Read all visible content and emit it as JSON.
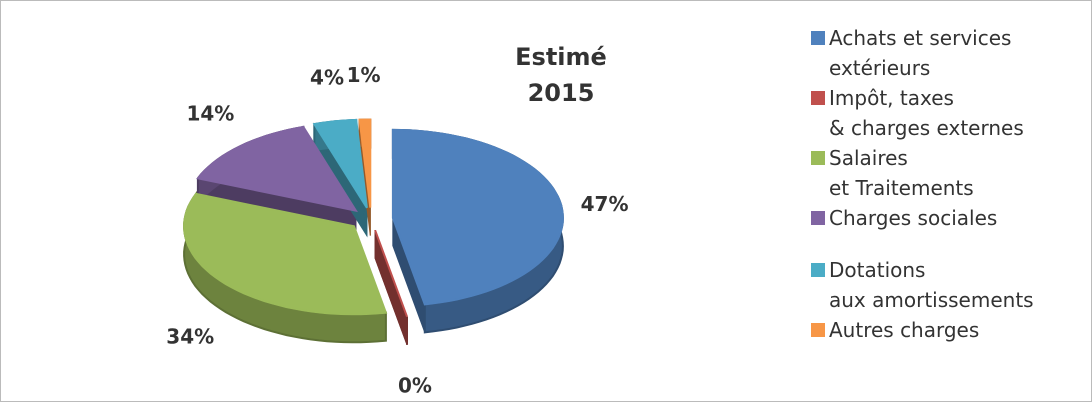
{
  "chart_data": {
    "type": "pie",
    "title": "Estimé\n2015",
    "categories": [
      "Achats et services\nextérieurs",
      "Impôt, taxes\n& charges externes",
      "Salaires\net Traitements",
      "Charges sociales",
      "Dotations\naux amortissements",
      "Autres charges"
    ],
    "values": [
      47,
      0,
      34,
      14,
      4,
      1
    ],
    "value_labels": [
      "47%",
      "0%",
      "34%",
      "14%",
      "4%",
      "1%"
    ],
    "colors": [
      "#4f81bd",
      "#c0504d",
      "#9bbb59",
      "#8064a2",
      "#4bacc6",
      "#f79646"
    ],
    "legend": "right"
  }
}
